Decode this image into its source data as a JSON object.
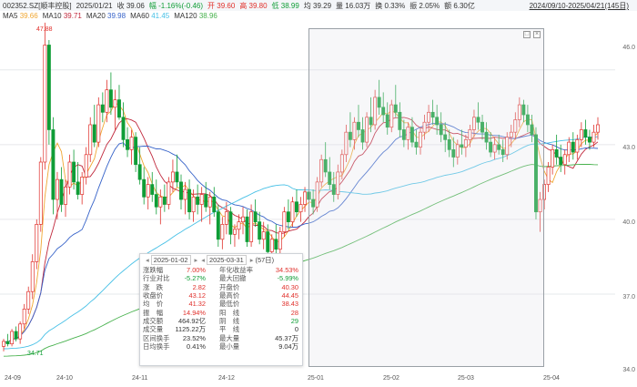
{
  "header": {
    "code": "002352.SZ[顺丰控股]",
    "date": "2025/01/21",
    "close": "收 39.06",
    "change": "幅 -1.16%(-0.46)",
    "open": "开 39.60",
    "high": "高 39.80",
    "low": "低 38.99",
    "avg": "均 39.29",
    "volume": "量 16.03万",
    "turnover": "换 0.33%",
    "amplitude": "振 2.05%",
    "amount": "额 6.30亿",
    "date_range": "2024/09/10-2025/04/21(145日)"
  },
  "ma": [
    {
      "label": "MA5",
      "value": "39.66",
      "color": "#f0a733"
    },
    {
      "label": "MA10",
      "value": "39.71",
      "color": "#c0283c"
    },
    {
      "label": "MA20",
      "value": "39.98",
      "color": "#3763c9"
    },
    {
      "label": "MA60",
      "value": "41.45",
      "color": "#47c0e6"
    },
    {
      "label": "MA120",
      "value": "38.96",
      "color": "#48b24e"
    }
  ],
  "axis": {
    "y_ticks": [
      "46.0",
      "43.0",
      "40.0",
      "37.0",
      "34.0"
    ],
    "x_ticks": [
      "24-09",
      "24-10",
      "24-11",
      "24-12",
      "25-01",
      "25-02",
      "25-03",
      "25-04"
    ],
    "max_label": "47.88",
    "min_label": "34.71"
  },
  "colors": {
    "up": "#e0302b",
    "down": "#0f9d36",
    "grid": "#e6e8eb"
  },
  "stats": {
    "start": "2025-01-02",
    "end": "2025-03-31",
    "days": "(57日)",
    "rows": [
      {
        "l1": "涨跌幅",
        "v1": "7.00%",
        "c1": "red",
        "l2": "年化收益率",
        "v2": "34.53%",
        "c2": "red"
      },
      {
        "l1": "行业对比",
        "v1": "-5.27%",
        "c1": "green",
        "l2": "最大回撤",
        "v2": "-5.99%",
        "c2": "green"
      },
      {
        "l1": "涨　跌",
        "v1": "2.82",
        "c1": "red",
        "l2": "开盘价",
        "v2": "40.30",
        "c2": "red"
      },
      {
        "l1": "收盘价",
        "v1": "43.12",
        "c1": "red",
        "l2": "最高价",
        "v2": "44.45",
        "c2": "red"
      },
      {
        "l1": "均　价",
        "v1": "41.32",
        "c1": "red",
        "l2": "最低价",
        "v2": "38.43",
        "c2": "red"
      },
      {
        "l1": "振　幅",
        "v1": "14.94%",
        "c1": "red",
        "l2": "阳　线",
        "v2": "28",
        "c2": "red"
      },
      {
        "l1": "成交额",
        "v1": "464.92亿",
        "c1": "",
        "l2": "阴　线",
        "v2": "29",
        "c2": "green"
      },
      {
        "l1": "成交量",
        "v1": "1125.22万",
        "c1": "",
        "l2": "平　线",
        "v2": "0",
        "c2": ""
      },
      {
        "l1": "区间换手",
        "v1": "23.52%",
        "c1": "",
        "l2": "最大量",
        "v2": "45.37万",
        "c2": ""
      },
      {
        "l1": "日均换手",
        "v1": "0.41%",
        "c1": "",
        "l2": "最小量",
        "v2": "9.04万",
        "c2": ""
      }
    ]
  },
  "chart_data": {
    "type": "candlestick",
    "ylim": [
      34.0,
      48.0
    ],
    "candles": [
      [
        34.9,
        35.2,
        34.7,
        35.1
      ],
      [
        35.1,
        35.4,
        34.9,
        35.0
      ],
      [
        35.0,
        35.6,
        34.9,
        35.5
      ],
      [
        35.5,
        35.7,
        35.1,
        35.2
      ],
      [
        35.2,
        35.9,
        35.0,
        35.8
      ],
      [
        35.8,
        36.6,
        35.6,
        36.4
      ],
      [
        36.4,
        37.3,
        36.2,
        37.1
      ],
      [
        37.1,
        38.6,
        36.8,
        38.3
      ],
      [
        38.3,
        40.0,
        38.0,
        39.8
      ],
      [
        39.8,
        42.5,
        39.5,
        42.3
      ],
      [
        42.3,
        47.9,
        42.0,
        47.0
      ],
      [
        47.0,
        47.2,
        43.0,
        43.6
      ],
      [
        43.6,
        44.1,
        40.2,
        40.8
      ],
      [
        40.8,
        41.9,
        40.0,
        41.6
      ],
      [
        41.6,
        42.1,
        40.3,
        40.6
      ],
      [
        40.6,
        41.6,
        40.1,
        41.3
      ],
      [
        41.3,
        42.6,
        41.0,
        42.3
      ],
      [
        42.3,
        42.8,
        41.2,
        41.5
      ],
      [
        41.5,
        42.3,
        40.8,
        41.0
      ],
      [
        41.0,
        41.9,
        40.6,
        41.7
      ],
      [
        41.7,
        42.9,
        41.4,
        42.6
      ],
      [
        42.6,
        44.1,
        42.3,
        43.8
      ],
      [
        43.8,
        44.6,
        42.9,
        43.1
      ],
      [
        43.1,
        44.9,
        42.9,
        44.6
      ],
      [
        44.6,
        45.1,
        43.9,
        44.3
      ],
      [
        44.3,
        45.6,
        43.9,
        45.2
      ],
      [
        45.2,
        45.9,
        44.2,
        44.5
      ],
      [
        44.5,
        45.2,
        43.6,
        44.8
      ],
      [
        44.8,
        45.4,
        44.0,
        44.1
      ],
      [
        44.1,
        44.7,
        42.9,
        43.2
      ],
      [
        43.2,
        43.7,
        42.5,
        42.8
      ],
      [
        42.8,
        43.6,
        42.2,
        43.3
      ],
      [
        43.3,
        43.5,
        41.9,
        42.2
      ],
      [
        42.2,
        42.9,
        41.4,
        41.6
      ],
      [
        41.6,
        42.1,
        40.6,
        40.9
      ],
      [
        40.9,
        41.7,
        40.4,
        41.4
      ],
      [
        41.4,
        41.9,
        40.7,
        41.0
      ],
      [
        41.0,
        41.6,
        40.2,
        40.5
      ],
      [
        40.5,
        41.2,
        39.8,
        40.9
      ],
      [
        40.9,
        41.4,
        40.3,
        40.6
      ],
      [
        40.6,
        41.7,
        40.4,
        41.5
      ],
      [
        41.5,
        42.4,
        41.1,
        41.9
      ],
      [
        41.9,
        42.6,
        41.3,
        41.5
      ],
      [
        41.5,
        41.8,
        40.4,
        40.8
      ],
      [
        40.8,
        41.5,
        40.2,
        41.2
      ],
      [
        41.2,
        41.6,
        40.0,
        40.3
      ],
      [
        40.3,
        41.2,
        39.9,
        40.9
      ],
      [
        40.9,
        41.4,
        40.2,
        40.6
      ],
      [
        40.6,
        41.3,
        39.9,
        41.0
      ],
      [
        41.0,
        41.5,
        40.3,
        40.5
      ],
      [
        40.5,
        41.1,
        39.8,
        40.9
      ],
      [
        40.9,
        41.3,
        40.1,
        40.3
      ],
      [
        40.3,
        40.6,
        38.9,
        39.2
      ],
      [
        39.2,
        40.1,
        38.8,
        39.8
      ],
      [
        39.8,
        40.7,
        39.4,
        40.3
      ],
      [
        40.3,
        40.5,
        39.0,
        39.4
      ],
      [
        39.4,
        39.8,
        38.9,
        39.6
      ],
      [
        39.6,
        40.2,
        39.2,
        39.9
      ],
      [
        39.9,
        40.5,
        39.4,
        40.1
      ],
      [
        40.1,
        40.4,
        38.9,
        39.1
      ],
      [
        39.1,
        40.6,
        38.9,
        40.3
      ],
      [
        40.3,
        40.8,
        39.7,
        39.9
      ],
      [
        39.9,
        40.3,
        39.0,
        39.2
      ],
      [
        39.2,
        39.9,
        38.8,
        39.5
      ],
      [
        39.5,
        39.8,
        38.4,
        38.7
      ],
      [
        38.7,
        39.4,
        38.4,
        39.2
      ],
      [
        39.2,
        39.8,
        38.6,
        38.8
      ],
      [
        38.8,
        39.7,
        38.6,
        39.5
      ],
      [
        39.5,
        40.5,
        39.3,
        40.3
      ],
      [
        40.3,
        40.8,
        39.6,
        39.9
      ],
      [
        39.9,
        40.9,
        39.7,
        40.7
      ],
      [
        40.7,
        41.2,
        40.1,
        40.3
      ],
      [
        40.3,
        40.9,
        39.9,
        40.6
      ],
      [
        40.6,
        41.3,
        40.3,
        41.1
      ],
      [
        41.1,
        41.6,
        40.5,
        40.8
      ],
      [
        40.8,
        41.2,
        40.2,
        40.5
      ],
      [
        40.5,
        41.7,
        40.3,
        41.5
      ],
      [
        41.5,
        42.6,
        41.3,
        42.4
      ],
      [
        42.4,
        43.1,
        41.7,
        41.9
      ],
      [
        41.9,
        42.5,
        41.2,
        41.4
      ],
      [
        41.4,
        41.9,
        40.7,
        41.0
      ],
      [
        41.0,
        42.2,
        40.8,
        41.9
      ],
      [
        41.9,
        42.8,
        41.6,
        42.6
      ],
      [
        42.6,
        43.8,
        42.3,
        43.5
      ],
      [
        43.5,
        44.3,
        42.9,
        43.2
      ],
      [
        43.2,
        44.1,
        42.8,
        43.9
      ],
      [
        43.9,
        44.6,
        43.3,
        43.6
      ],
      [
        43.6,
        44.1,
        42.8,
        43.1
      ],
      [
        43.1,
        44.3,
        42.9,
        44.1
      ],
      [
        44.1,
        44.9,
        43.5,
        43.8
      ],
      [
        43.8,
        45.2,
        43.6,
        44.9
      ],
      [
        44.9,
        45.6,
        44.2,
        44.5
      ],
      [
        44.5,
        45.1,
        43.9,
        44.2
      ],
      [
        44.2,
        44.7,
        43.4,
        43.7
      ],
      [
        43.7,
        44.8,
        43.5,
        44.6
      ],
      [
        44.6,
        45.4,
        44.1,
        44.3
      ],
      [
        44.3,
        44.7,
        43.3,
        43.6
      ],
      [
        43.6,
        44.0,
        42.9,
        43.2
      ],
      [
        43.2,
        43.9,
        42.8,
        43.7
      ],
      [
        43.7,
        44.1,
        42.9,
        43.1
      ],
      [
        43.1,
        43.6,
        42.6,
        42.9
      ],
      [
        42.9,
        43.7,
        42.6,
        43.5
      ],
      [
        43.5,
        44.2,
        43.2,
        43.9
      ],
      [
        43.9,
        44.6,
        43.5,
        44.3
      ],
      [
        44.3,
        44.8,
        43.8,
        44.1
      ],
      [
        44.1,
        44.6,
        43.4,
        43.8
      ],
      [
        43.8,
        44.3,
        43.1,
        43.4
      ],
      [
        43.4,
        43.9,
        42.7,
        43.2
      ],
      [
        43.2,
        43.6,
        42.5,
        42.8
      ],
      [
        42.8,
        43.3,
        42.1,
        42.5
      ],
      [
        42.5,
        43.2,
        42.2,
        43.0
      ],
      [
        43.0,
        43.6,
        42.6,
        42.9
      ],
      [
        42.9,
        43.4,
        42.5,
        43.2
      ],
      [
        43.2,
        43.8,
        42.9,
        43.6
      ],
      [
        43.6,
        44.4,
        43.3,
        44.1
      ],
      [
        44.1,
        44.7,
        43.6,
        43.9
      ],
      [
        43.9,
        44.2,
        43.2,
        43.5
      ],
      [
        43.5,
        43.9,
        42.8,
        43.1
      ],
      [
        43.1,
        43.5,
        42.5,
        42.7
      ],
      [
        42.7,
        43.3,
        42.4,
        43.0
      ],
      [
        43.0,
        43.4,
        42.6,
        42.8
      ],
      [
        42.8,
        43.2,
        42.3,
        42.6
      ],
      [
        42.6,
        43.5,
        42.4,
        43.3
      ],
      [
        43.3,
        43.8,
        42.9,
        43.5
      ],
      [
        43.5,
        44.3,
        43.2,
        44.0
      ],
      [
        44.0,
        44.9,
        43.7,
        44.6
      ],
      [
        44.6,
        44.8,
        43.9,
        44.2
      ],
      [
        44.2,
        44.6,
        43.5,
        43.8
      ],
      [
        43.8,
        44.2,
        43.1,
        43.4
      ],
      [
        43.4,
        43.7,
        40.0,
        40.3
      ],
      [
        40.3,
        41.1,
        39.5,
        40.8
      ],
      [
        40.8,
        41.6,
        40.4,
        41.4
      ],
      [
        41.4,
        42.3,
        41.1,
        42.1
      ],
      [
        42.1,
        43.0,
        41.8,
        42.8
      ],
      [
        42.8,
        43.4,
        42.2,
        42.5
      ],
      [
        42.5,
        43.0,
        41.9,
        42.2
      ],
      [
        42.2,
        42.8,
        41.8,
        42.6
      ],
      [
        42.6,
        43.3,
        42.3,
        43.1
      ],
      [
        43.1,
        43.5,
        42.4,
        42.7
      ],
      [
        42.7,
        43.4,
        42.4,
        43.2
      ],
      [
        43.2,
        43.9,
        42.9,
        43.6
      ],
      [
        43.6,
        44.0,
        43.0,
        43.3
      ],
      [
        43.3,
        43.6,
        42.8,
        43.1
      ],
      [
        43.1,
        43.8,
        42.9,
        43.5
      ],
      [
        43.5,
        44.1,
        43.2,
        43.8
      ]
    ]
  }
}
